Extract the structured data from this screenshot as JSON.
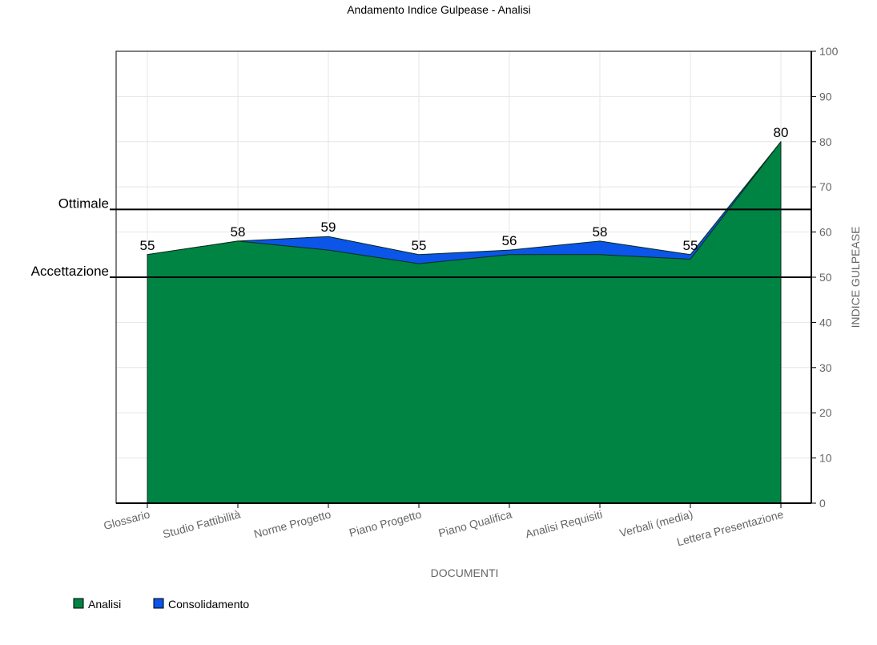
{
  "chart_data": {
    "type": "area",
    "title": "Andamento Indice Gulpease - Analisi",
    "xlabel": "DOCUMENTI",
    "ylabel": "INDICE GULPEASE",
    "ylim": [
      0,
      100
    ],
    "y_ticks": [
      "0",
      "10",
      "20",
      "30",
      "40",
      "50",
      "60",
      "70",
      "80",
      "90",
      "100"
    ],
    "y_axis_side": "right",
    "grid": true,
    "categories": [
      "Glossario",
      "Studio Fattibilità",
      "Norme Progetto",
      "Piano Progetto",
      "Piano Qualifica",
      "Analisi Requisiti",
      "Verbali (media)",
      "Lettera Presentazione"
    ],
    "series": [
      {
        "name": "Consolidamento",
        "values": [
          55,
          58,
          59,
          55,
          56,
          58,
          55,
          80
        ],
        "color": "#0b55e8"
      },
      {
        "name": "Analisi",
        "values": [
          55,
          58,
          56,
          53,
          55,
          55,
          54,
          80
        ],
        "color": "#008444"
      }
    ],
    "data_labels": [
      "55",
      "58",
      "59",
      "55",
      "56",
      "58",
      "55",
      "80"
    ],
    "reference_lines": [
      {
        "name": "Ottimale",
        "value": 65
      },
      {
        "name": "Accettazione",
        "value": 50
      }
    ],
    "legend": {
      "position": "bottom-left",
      "items": [
        {
          "label": "Analisi",
          "color": "#008444"
        },
        {
          "label": "Consolidamento",
          "color": "#0b55e8"
        }
      ]
    }
  }
}
